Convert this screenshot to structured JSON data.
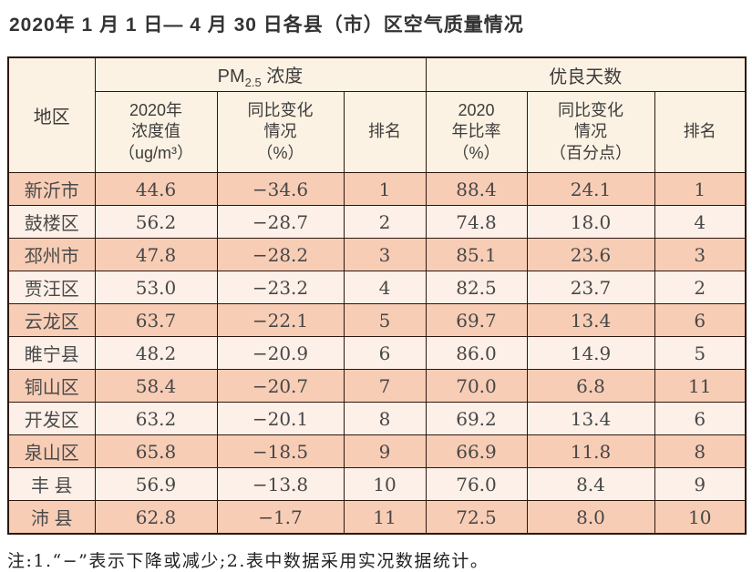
{
  "title": "2020年 1 月 1 日— 4 月 30 日各县（市）区空气质量情况",
  "table": {
    "region_header": "地区",
    "pm25_group": {
      "prefix": "PM",
      "sub": "2.5",
      "suffix": " 浓度"
    },
    "days_group": "优良天数",
    "sub_headers": {
      "pm_value": "2020年\n浓度值\n（ug/m³）",
      "pm_change": "同比变化\n情况\n（%）",
      "pm_rank": "排名",
      "days_ratio": "2020\n年比率\n（%）",
      "days_change": "同比变化\n情况\n（百分点）",
      "days_rank": "排名"
    },
    "rows": [
      {
        "region": "新沂市",
        "values": [
          "44.6",
          "−34.6",
          "1",
          "88.4",
          "24.1",
          "1"
        ]
      },
      {
        "region": "鼓楼区",
        "values": [
          "56.2",
          "−28.7",
          "2",
          "74.8",
          "18.0",
          "4"
        ]
      },
      {
        "region": "邳州市",
        "values": [
          "47.8",
          "−28.2",
          "3",
          "85.1",
          "23.6",
          "3"
        ]
      },
      {
        "region": "贾汪区",
        "values": [
          "53.0",
          "−23.2",
          "4",
          "82.5",
          "23.7",
          "2"
        ]
      },
      {
        "region": "云龙区",
        "values": [
          "63.7",
          "−22.1",
          "5",
          "69.7",
          "13.4",
          "6"
        ]
      },
      {
        "region": "睢宁县",
        "values": [
          "48.2",
          "−20.9",
          "6",
          "86.0",
          "14.9",
          "5"
        ]
      },
      {
        "region": "铜山区",
        "values": [
          "58.4",
          "−20.7",
          "7",
          "70.0",
          "6.8",
          "11"
        ]
      },
      {
        "region": "开发区",
        "values": [
          "63.2",
          "−20.1",
          "8",
          "69.2",
          "13.4",
          "6"
        ]
      },
      {
        "region": "泉山区",
        "values": [
          "65.8",
          "−18.5",
          "9",
          "66.9",
          "11.8",
          "8"
        ]
      },
      {
        "region": "丰 县",
        "values": [
          "56.9",
          "−13.8",
          "10",
          "76.0",
          "8.4",
          "9"
        ]
      },
      {
        "region": "沛 县",
        "values": [
          "62.8",
          "−1.7",
          "11",
          "72.5",
          "8.0",
          "10"
        ]
      }
    ]
  },
  "note": "注:1.“−”表示下降或减少;2.表中数据采用实况数据统计。",
  "colors": {
    "row_odd": "#f8cdb6",
    "row_even": "#fdf0e8",
    "header_bg": "#fcf2e3",
    "border": "#2b170e"
  }
}
